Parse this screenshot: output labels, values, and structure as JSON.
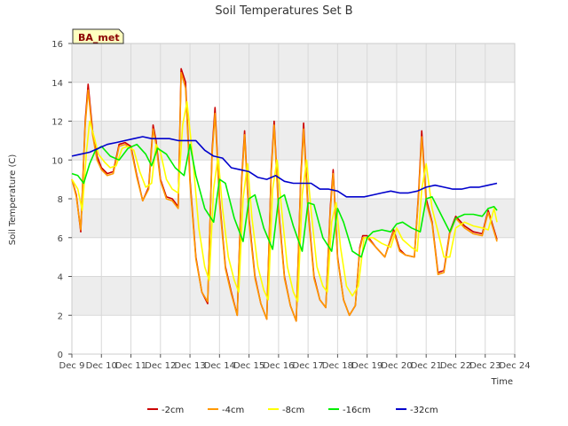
{
  "chart_data": {
    "type": "line",
    "title": "Soil Temperatures Set B",
    "xlabel": "Time",
    "ylabel": "Soil Temperature (C)",
    "badge": "BA_met",
    "ylim": [
      0,
      16
    ],
    "yticks": [
      0,
      2,
      4,
      6,
      8,
      10,
      12,
      14,
      16
    ],
    "xlim": [
      0,
      15
    ],
    "xtick_labels": [
      "Dec 9",
      "Dec 10",
      "Dec 11",
      "Dec 12",
      "Dec 13",
      "Dec 14",
      "Dec 15",
      "Dec 16",
      "Dec 17",
      "Dec 18",
      "Dec 19",
      "Dec 20",
      "Dec 21",
      "Dec 22",
      "Dec 23",
      "Dec 24"
    ],
    "grid": true,
    "legend_position": "bottom",
    "colors": {
      "band": "#ededed",
      "grid": "#d8d8d8"
    },
    "series": [
      {
        "name": "-2cm",
        "color": "#cc0000",
        "x": [
          0.0,
          0.15,
          0.3,
          0.45,
          0.55,
          0.7,
          0.85,
          1.0,
          1.2,
          1.4,
          1.6,
          1.8,
          2.0,
          2.2,
          2.4,
          2.6,
          2.75,
          2.85,
          3.0,
          3.2,
          3.4,
          3.6,
          3.7,
          3.85,
          4.0,
          4.2,
          4.4,
          4.6,
          4.75,
          4.85,
          5.0,
          5.2,
          5.4,
          5.6,
          5.75,
          5.85,
          6.0,
          6.2,
          6.4,
          6.6,
          6.75,
          6.85,
          7.0,
          7.2,
          7.4,
          7.6,
          7.75,
          7.85,
          8.0,
          8.2,
          8.4,
          8.6,
          8.75,
          8.85,
          9.0,
          9.2,
          9.4,
          9.6,
          9.75,
          9.85,
          10.0,
          10.3,
          10.6,
          10.9,
          11.1,
          11.3,
          11.6,
          11.75,
          11.85,
          12.0,
          12.2,
          12.4,
          12.6,
          12.8,
          13.0,
          13.3,
          13.6,
          13.9,
          14.1,
          14.3,
          14.4
        ],
        "y": [
          9.0,
          8.2,
          6.3,
          12.0,
          13.9,
          11.5,
          10.2,
          9.6,
          9.3,
          9.4,
          10.8,
          10.9,
          10.7,
          9.2,
          7.9,
          8.6,
          11.8,
          11.0,
          9.0,
          8.1,
          8.0,
          7.6,
          14.7,
          14.0,
          9.0,
          5.0,
          3.2,
          2.6,
          10.5,
          12.7,
          8.0,
          4.5,
          3.2,
          2.0,
          9.0,
          11.5,
          7.0,
          4.0,
          2.6,
          1.8,
          9.5,
          12.0,
          7.5,
          4.0,
          2.5,
          1.7,
          9.0,
          11.9,
          7.5,
          4.0,
          2.8,
          2.4,
          7.5,
          9.5,
          5.0,
          2.8,
          2.0,
          2.5,
          5.5,
          6.1,
          6.1,
          5.5,
          5.0,
          6.4,
          5.4,
          5.1,
          5.0,
          8.5,
          11.5,
          8.0,
          6.8,
          4.2,
          4.3,
          6.3,
          7.1,
          6.6,
          6.3,
          6.2,
          7.4,
          6.4,
          5.9
        ]
      },
      {
        "name": "-4cm",
        "color": "#ff9900",
        "x": [
          0.0,
          0.15,
          0.3,
          0.45,
          0.55,
          0.7,
          0.85,
          1.0,
          1.2,
          1.4,
          1.6,
          1.8,
          2.0,
          2.2,
          2.4,
          2.6,
          2.75,
          2.85,
          3.0,
          3.2,
          3.4,
          3.6,
          3.7,
          3.85,
          4.0,
          4.2,
          4.4,
          4.6,
          4.75,
          4.85,
          5.0,
          5.2,
          5.4,
          5.6,
          5.75,
          5.85,
          6.0,
          6.2,
          6.4,
          6.6,
          6.75,
          6.85,
          7.0,
          7.2,
          7.4,
          7.6,
          7.75,
          7.85,
          8.0,
          8.2,
          8.4,
          8.6,
          8.75,
          8.85,
          9.0,
          9.2,
          9.4,
          9.6,
          9.75,
          9.85,
          10.0,
          10.3,
          10.6,
          10.9,
          11.1,
          11.3,
          11.6,
          11.75,
          11.85,
          12.0,
          12.2,
          12.4,
          12.6,
          12.8,
          13.0,
          13.3,
          13.6,
          13.9,
          14.1,
          14.3,
          14.4
        ],
        "y": [
          9.0,
          8.1,
          6.4,
          11.8,
          13.6,
          11.3,
          10.0,
          9.5,
          9.2,
          9.3,
          10.7,
          10.8,
          10.6,
          9.1,
          7.9,
          8.5,
          11.6,
          10.8,
          8.9,
          8.0,
          7.9,
          7.5,
          14.5,
          13.7,
          8.8,
          4.9,
          3.2,
          2.7,
          10.3,
          12.4,
          7.8,
          4.4,
          3.1,
          2.0,
          8.8,
          11.3,
          6.8,
          3.9,
          2.6,
          1.8,
          9.3,
          11.8,
          7.3,
          3.9,
          2.5,
          1.7,
          8.8,
          11.6,
          7.3,
          3.9,
          2.8,
          2.4,
          7.3,
          9.3,
          4.9,
          2.8,
          2.0,
          2.5,
          5.4,
          6.0,
          6.0,
          5.5,
          5.0,
          6.3,
          5.3,
          5.1,
          5.0,
          8.3,
          11.2,
          7.8,
          6.7,
          4.1,
          4.2,
          6.2,
          7.0,
          6.5,
          6.2,
          6.1,
          7.3,
          6.3,
          5.8
        ]
      },
      {
        "name": "-8cm",
        "color": "#ffff00",
        "x": [
          0.0,
          0.2,
          0.35,
          0.5,
          0.6,
          0.75,
          0.9,
          1.1,
          1.3,
          1.5,
          1.7,
          1.9,
          2.1,
          2.3,
          2.5,
          2.7,
          2.85,
          3.0,
          3.2,
          3.4,
          3.6,
          3.75,
          3.9,
          4.1,
          4.3,
          4.5,
          4.65,
          4.8,
          4.95,
          5.1,
          5.3,
          5.5,
          5.65,
          5.8,
          5.95,
          6.1,
          6.3,
          6.5,
          6.65,
          6.8,
          6.95,
          7.1,
          7.3,
          7.5,
          7.65,
          7.8,
          7.95,
          8.1,
          8.3,
          8.5,
          8.65,
          8.8,
          8.95,
          9.1,
          9.3,
          9.5,
          9.7,
          9.9,
          10.2,
          10.5,
          10.8,
          11.0,
          11.2,
          11.5,
          11.7,
          11.85,
          12.0,
          12.2,
          12.4,
          12.6,
          12.8,
          13.0,
          13.3,
          13.6,
          13.9,
          14.1,
          14.3,
          14.4
        ],
        "y": [
          9.0,
          8.5,
          7.4,
          10.5,
          12.0,
          11.2,
          10.3,
          9.9,
          9.6,
          9.7,
          10.6,
          10.7,
          10.5,
          9.4,
          8.6,
          8.8,
          10.8,
          10.4,
          9.0,
          8.5,
          8.3,
          11.8,
          13.0,
          10.0,
          6.5,
          4.5,
          3.8,
          8.5,
          10.2,
          7.5,
          5.0,
          3.8,
          3.2,
          8.0,
          9.8,
          7.0,
          4.5,
          3.3,
          2.8,
          8.5,
          10.0,
          7.5,
          4.5,
          3.2,
          2.7,
          8.2,
          10.0,
          7.4,
          4.5,
          3.5,
          3.2,
          6.8,
          7.8,
          5.5,
          3.5,
          3.0,
          3.5,
          6.0,
          6.0,
          5.7,
          5.5,
          6.5,
          5.9,
          5.5,
          5.3,
          8.5,
          9.8,
          7.5,
          6.3,
          5.0,
          5.0,
          6.5,
          6.8,
          6.6,
          6.5,
          6.4,
          7.5,
          6.8
        ]
      },
      {
        "name": "-16cm",
        "color": "#00ee00",
        "x": [
          0.0,
          0.2,
          0.4,
          0.6,
          0.8,
          1.0,
          1.3,
          1.6,
          1.9,
          2.2,
          2.5,
          2.7,
          2.9,
          3.2,
          3.5,
          3.8,
          4.0,
          4.2,
          4.5,
          4.8,
          5.0,
          5.2,
          5.5,
          5.8,
          6.0,
          6.2,
          6.5,
          6.8,
          7.0,
          7.2,
          7.5,
          7.8,
          8.0,
          8.2,
          8.5,
          8.8,
          9.0,
          9.2,
          9.5,
          9.8,
          10.0,
          10.2,
          10.5,
          10.8,
          11.0,
          11.2,
          11.5,
          11.8,
          12.0,
          12.2,
          12.5,
          12.8,
          13.0,
          13.3,
          13.6,
          13.9,
          14.1,
          14.3,
          14.4
        ],
        "y": [
          9.3,
          9.2,
          8.8,
          9.8,
          10.5,
          10.7,
          10.2,
          10.0,
          10.6,
          10.8,
          10.3,
          9.7,
          10.6,
          10.3,
          9.6,
          9.2,
          10.8,
          9.2,
          7.5,
          6.8,
          9.0,
          8.8,
          7.0,
          5.8,
          8.0,
          8.2,
          6.5,
          5.4,
          8.0,
          8.2,
          6.6,
          5.3,
          7.8,
          7.7,
          6.0,
          5.3,
          7.5,
          6.8,
          5.3,
          5.0,
          6.0,
          6.3,
          6.4,
          6.3,
          6.7,
          6.8,
          6.5,
          6.3,
          8.0,
          8.1,
          7.2,
          6.3,
          7.0,
          7.2,
          7.2,
          7.1,
          7.5,
          7.6,
          7.4
        ]
      },
      {
        "name": "-32cm",
        "color": "#0000cc",
        "x": [
          0.0,
          0.3,
          0.6,
          0.9,
          1.2,
          1.5,
          1.8,
          2.1,
          2.4,
          2.7,
          3.0,
          3.3,
          3.6,
          3.9,
          4.2,
          4.5,
          4.8,
          5.1,
          5.4,
          5.7,
          6.0,
          6.3,
          6.6,
          6.9,
          7.2,
          7.5,
          7.8,
          8.1,
          8.4,
          8.7,
          9.0,
          9.3,
          9.6,
          9.9,
          10.2,
          10.5,
          10.8,
          11.1,
          11.4,
          11.7,
          12.0,
          12.3,
          12.6,
          12.9,
          13.2,
          13.5,
          13.8,
          14.1,
          14.4
        ],
        "y": [
          10.2,
          10.3,
          10.4,
          10.6,
          10.8,
          10.9,
          11.0,
          11.1,
          11.2,
          11.1,
          11.1,
          11.1,
          11.0,
          11.0,
          11.0,
          10.5,
          10.2,
          10.1,
          9.6,
          9.5,
          9.4,
          9.1,
          9.0,
          9.2,
          8.9,
          8.8,
          8.8,
          8.8,
          8.5,
          8.5,
          8.4,
          8.1,
          8.1,
          8.1,
          8.2,
          8.3,
          8.4,
          8.3,
          8.3,
          8.4,
          8.6,
          8.7,
          8.6,
          8.5,
          8.5,
          8.6,
          8.6,
          8.7,
          8.8
        ]
      }
    ]
  }
}
